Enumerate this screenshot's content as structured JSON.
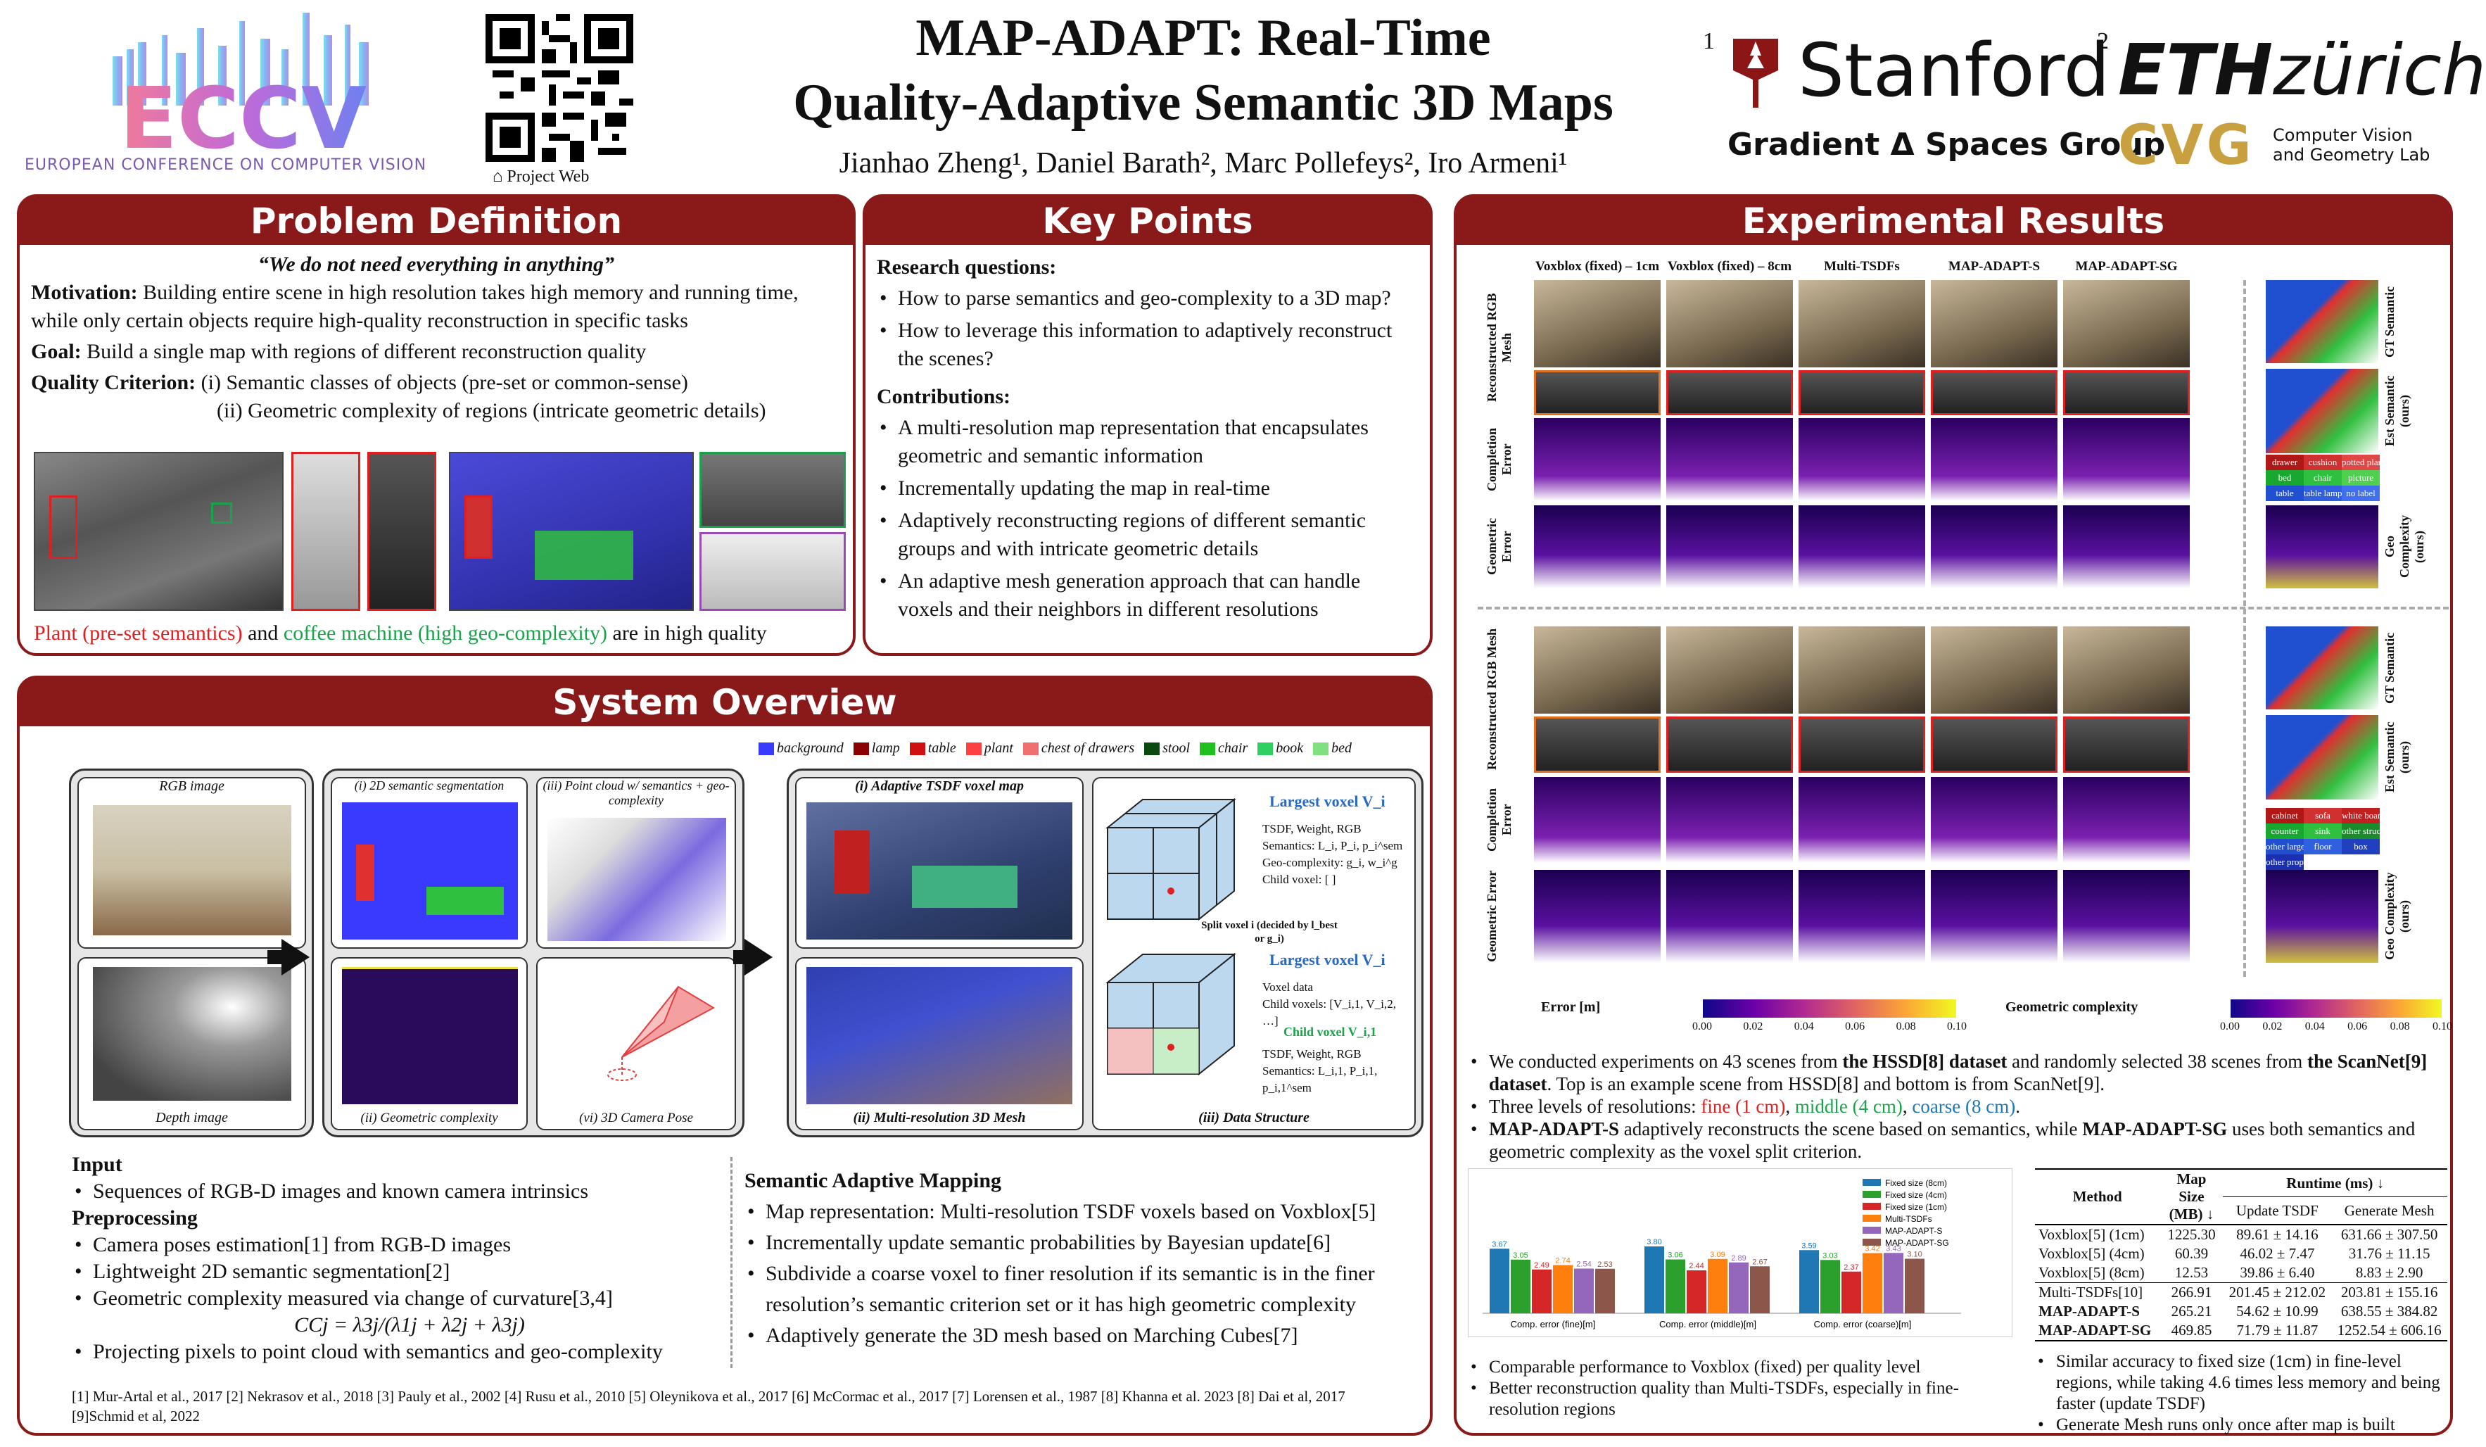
{
  "header": {
    "eccv_logo": "ECCV",
    "eccv_subtitle": "EUROPEAN CONFERENCE ON COMPUTER VISION",
    "project_web": "Project Web",
    "title_line1": "MAP-ADAPT: Real-Time",
    "title_line2": "Quality-Adaptive Semantic 3D Maps",
    "authors": "Jianhao Zheng¹, Daniel Barath², Marc Pollefeys², Iro Armeni¹",
    "aff1": "1",
    "aff2": "2",
    "stanford": "Stanford",
    "gradient_group": "Gradient Δ Spaces Group",
    "eth": "ETH",
    "zurich": "zürich",
    "cvg": "CVG",
    "cvg_text": "Computer Vision and Geometry Lab"
  },
  "problem": {
    "title": "Problem Definition",
    "quote": "“We do not need everything in anything”",
    "motivation_label": "Motivation:",
    "motivation": "Building entire scene in high resolution takes high memory and running time, while only certain objects require high-quality reconstruction in specific tasks",
    "goal_label": "Goal:",
    "goal": "Build a single map with regions of different reconstruction quality",
    "criterion_label": "Quality Criterion:",
    "criterion1": "(i) Semantic classes of objects  (pre-set or common-sense)",
    "criterion2": "(ii) Geometric complexity of regions (intricate geometric details)",
    "caption_red": "Plant (pre-set semantics)",
    "caption_and": "and",
    "caption_green": "coffee machine (high geo-complexity)",
    "caption_end": "are in high quality"
  },
  "keypoints": {
    "title": "Key Points",
    "rq_label": "Research questions:",
    "rq": [
      "How to parse semantics and geo-complexity to a 3D map?",
      "How to leverage this information to adaptively reconstruct the scenes?"
    ],
    "contrib_label": "Contributions:",
    "contrib": [
      "A multi-resolution map representation that encapsulates geometric and semantic information",
      "Incrementally updating the map in real-time",
      "Adaptively reconstructing regions of different semantic groups and with intricate geometric details",
      "An adaptive mesh generation approach that can handle voxels and their neighbors in different resolutions"
    ]
  },
  "overview": {
    "title": "System Overview",
    "legend": [
      {
        "name": "background",
        "color": "#3a3aff"
      },
      {
        "name": "lamp",
        "color": "#8b0000"
      },
      {
        "name": "table",
        "color": "#d01010"
      },
      {
        "name": "plant",
        "color": "#ff4040"
      },
      {
        "name": "chest of drawers",
        "color": "#f07070"
      },
      {
        "name": "stool",
        "color": "#0a4a10"
      },
      {
        "name": "chair",
        "color": "#20c020"
      },
      {
        "name": "book",
        "color": "#30d060"
      },
      {
        "name": "bed",
        "color": "#80e080"
      }
    ],
    "tiles": {
      "rgb": "RGB image",
      "depth": "Depth image",
      "seg": "(i) 2D semantic segmentation",
      "geo": "(ii) Geometric complexity",
      "pc": "(iii) Point cloud w/ semantics + geo-complexity",
      "pose": "(vi) 3D Camera Pose",
      "tsdf": "(i) Adaptive TSDF voxel map",
      "mesh": "(ii) Multi-resolution 3D Mesh",
      "ds": "(iii) Data Structure"
    },
    "ds": {
      "largest": "Largest voxel V_i",
      "fields": [
        "TSDF, Weight, RGB",
        "Semantics: L_i, P_i, p_i^sem",
        "Geo-complexity: g_i, w_i^g",
        "Child voxel: [ ]"
      ],
      "split": "Split voxel i (decided by l_best or g_i)",
      "largest2": "Largest voxel V_i",
      "fields2": [
        "Voxel data",
        "Child voxels: [V_i,1, V_i,2, …]"
      ],
      "child": "Child voxel V_i,1",
      "fields3": [
        "TSDF, Weight, RGB",
        "Semantics: L_i,1, P_i,1, p_i,1^sem"
      ]
    },
    "input_label": "Input",
    "input": [
      "Sequences of RGB-D images and known camera intrinsics"
    ],
    "pre_label": "Preprocessing",
    "pre": [
      "Camera poses estimation[1] from RGB-D images",
      "Lightweight 2D semantic segmentation[2]",
      "Geometric complexity measured via change of curvature[3,4]"
    ],
    "formula": "CCj = λ3j/(λ1j + λ2j + λ3j)",
    "pre_last": "Projecting pixels to point cloud with semantics and geo-complexity",
    "sam_label": "Semantic Adaptive Mapping",
    "sam": [
      "Map representation: Multi-resolution TSDF voxels based on Voxblox[5]",
      "Incrementally update semantic probabilities by Bayesian update[6]",
      "Subdivide a coarse voxel to finer resolution if its semantic is in the finer resolution’s semantic criterion set or it has high geometric complexity",
      "Adaptively generate the 3D mesh based on Marching Cubes[7]"
    ],
    "refs": "[1] Mur-Artal et al., 2017  [2] Nekrasov et al., 2018  [3] Pauly et al., 2002  [4] Rusu et al., 2010  [5] Oleynikova et al., 2017  [6] McCormac et al., 2017  [7] Lorensen et al., 1987 [8] Khanna et al. 2023 [8] Dai et al, 2017 [9]Schmid et al, 2022"
  },
  "results": {
    "title": "Experimental Results",
    "cols": [
      "Voxblox (fixed) – 1cm",
      "Voxblox (fixed) – 8cm",
      "Multi-TSDFs",
      "MAP-ADAPT-S",
      "MAP-ADAPT-SG"
    ],
    "rows": [
      "Reconstructed RGB Mesh",
      "Completion Error",
      "Geometric Error"
    ],
    "side_top": [
      "GT Semantic",
      "Est Semantic (ours)",
      "Geo Complexity (ours)"
    ],
    "side_bottom": [
      "GT Semantic",
      "Est Semantic (ours)",
      "Geo Complexity (ours)"
    ],
    "legend_top": [
      {
        "name": "drawer",
        "color": "#b01818"
      },
      {
        "name": "cushion",
        "color": "#d03030"
      },
      {
        "name": "potted plant",
        "color": "#e04848"
      },
      {
        "name": "bed",
        "color": "#18a830"
      },
      {
        "name": "chair",
        "color": "#30c040"
      },
      {
        "name": "picture",
        "color": "#50d050"
      },
      {
        "name": "table",
        "color": "#2050d0"
      },
      {
        "name": "table lamp",
        "color": "#3060e0"
      },
      {
        "name": "no label",
        "color": "#4070f0"
      }
    ],
    "legend_bottom": [
      {
        "name": "cabinet",
        "color": "#b01818"
      },
      {
        "name": "sofa",
        "color": "#d03030"
      },
      {
        "name": "white board",
        "color": "#c02020"
      },
      {
        "name": "counter",
        "color": "#18a830"
      },
      {
        "name": "sink",
        "color": "#30c040"
      },
      {
        "name": "other structure",
        "color": "#1a8a2a"
      },
      {
        "name": "other large",
        "color": "#2050d0"
      },
      {
        "name": "floor",
        "color": "#3060e0"
      },
      {
        "name": "box",
        "color": "#2040c0"
      },
      {
        "name": "other prop",
        "color": "#1a30b0"
      }
    ],
    "err_label": "Error [m]",
    "err_ticks": [
      "0.00",
      "0.02",
      "0.04",
      "0.06",
      "0.08",
      "0.10"
    ],
    "geo_label": "Geometric complexity",
    "geo_ticks": [
      "0.00",
      "0.02",
      "0.04",
      "0.06",
      "0.08",
      "0.10"
    ],
    "bullets": [
      "We conducted experiments on 43 scenes from the HSSD[8] dataset and randomly selected 38 scenes from the ScanNet[9] dataset. Top is an example scene from HSSD[8] and bottom is from ScanNet[9].",
      "Three levels of resolutions: fine (1 cm), middle (4 cm), coarse (8 cm).",
      "MAP-ADAPT-S adaptively reconstructs the scene based on semantics, while MAP-ADAPT-SG uses both semantics and geometric complexity as the voxel split criterion."
    ],
    "b1_pre": "We conducted experiments on 43 scenes from ",
    "b1_bold1": "the HSSD[8] dataset",
    "b1_mid": " and randomly selected 38 scenes from ",
    "b1_bold2": "the ScanNet[9] dataset",
    "b1_end": ". Top is an example scene from HSSD[8] and bottom is from ScanNet[9].",
    "b2_pre": "Three levels of resolutions: ",
    "b2_fine": "fine (1 cm)",
    "b2_middle": "middle (4 cm)",
    "b2_coarse": "coarse (8 cm)",
    "b3_s": "MAP-ADAPT-S",
    "b3_mid": " adaptively reconstructs the scene based on semantics, while ",
    "b3_sg": "MAP-ADAPT-SG",
    "b3_end": " uses both semantics and geometric complexity as the voxel split criterion.",
    "chart_notes": [
      "Comparable performance to Voxblox (fixed) per quality level",
      "Better reconstruction quality than Multi-TSDFs, especially in fine-resolution regions"
    ],
    "table_notes": [
      "Similar accuracy to fixed size (1cm) in fine-level regions, while taking 4.6 times less memory and being faster (update TSDF)",
      "Generate Mesh runs only once after map is built"
    ],
    "table": {
      "h_method": "Method",
      "h_mapsize": "Map Size (MB) ↓",
      "h_runtime": "Runtime (ms) ↓",
      "h_update": "Update TSDF",
      "h_gen": "Generate Mesh",
      "rows": [
        {
          "m": "Voxblox[5] (1cm)",
          "size": "1225.30",
          "upd": "89.61 ± 14.16",
          "gen": "631.66 ± 307.50"
        },
        {
          "m": "Voxblox[5] (4cm)",
          "size": "60.39",
          "upd": "46.02 ± 7.47",
          "gen": "31.76 ± 11.15"
        },
        {
          "m": "Voxblox[5] (8cm)",
          "size": "12.53",
          "upd": "39.86 ± 6.40",
          "gen": "8.83 ± 2.90"
        },
        {
          "m": "Multi-TSDFs[10]",
          "size": "266.91",
          "upd": "201.45 ± 212.02",
          "gen": "203.81 ± 155.16"
        },
        {
          "m": "MAP-ADAPT-S",
          "size": "265.21",
          "upd": "54.62 ± 10.99",
          "gen": "638.55 ± 384.82"
        },
        {
          "m": "MAP-ADAPT-SG",
          "size": "469.85",
          "upd": "71.79 ± 11.87",
          "gen": "1252.54 ± 606.16"
        }
      ]
    }
  },
  "chart_data": {
    "type": "bar",
    "categories": [
      "Comp. error (fine)[m]",
      "Comp. error (middle)[m]",
      "Comp. error (coarse)[m]"
    ],
    "series": [
      {
        "name": "Fixed size (8cm)",
        "color": "#1f77b4",
        "values": [
          3.67,
          3.8,
          3.59
        ]
      },
      {
        "name": "Fixed size (4cm)",
        "color": "#2ca02c",
        "values": [
          3.05,
          3.06,
          3.03
        ]
      },
      {
        "name": "Fixed size (1cm)",
        "color": "#d62728",
        "values": [
          2.49,
          2.44,
          2.37
        ]
      },
      {
        "name": "Multi-TSDFs",
        "color": "#ff7f0e",
        "values": [
          2.74,
          3.09,
          3.42
        ]
      },
      {
        "name": "MAP-ADAPT-S",
        "color": "#9467bd",
        "values": [
          2.54,
          2.89,
          3.43
        ]
      },
      {
        "name": "MAP-ADAPT-SG",
        "color": "#8c564b",
        "values": [
          2.53,
          2.67,
          3.1
        ]
      }
    ],
    "ylim": [
      0,
      6
    ]
  }
}
